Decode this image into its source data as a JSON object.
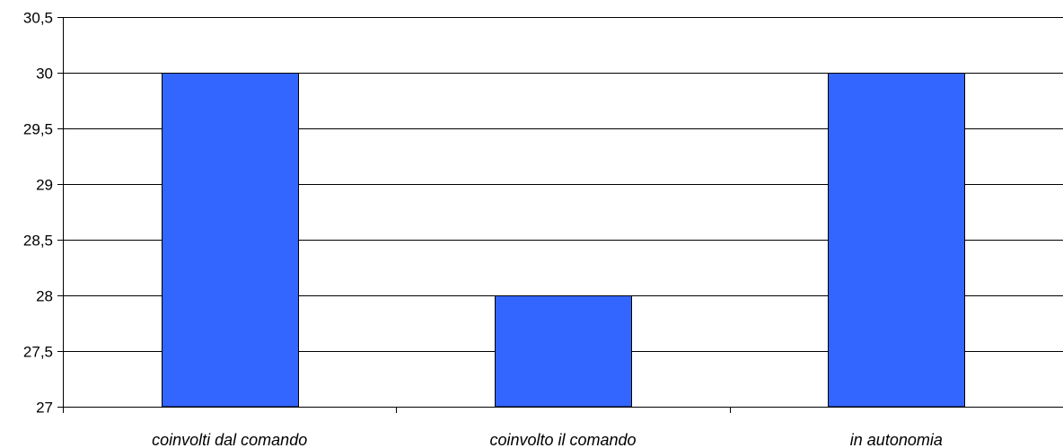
{
  "chart_data": {
    "type": "bar",
    "title": "",
    "xlabel": "",
    "ylabel": "",
    "categories": [
      "coinvolti dal comando",
      "coinvolto il comando",
      "in autonomia"
    ],
    "values": [
      30,
      28,
      30
    ],
    "ylim": [
      27,
      30.5
    ],
    "yticks": [
      27,
      27.5,
      28,
      28.5,
      29,
      29.5,
      30,
      30.5
    ],
    "ytick_labels": [
      "27",
      "27,5",
      "28",
      "28,5",
      "29",
      "29,5",
      "30",
      "30,5"
    ],
    "grid": true,
    "legend": "none",
    "bar_color": "#3366ff"
  }
}
